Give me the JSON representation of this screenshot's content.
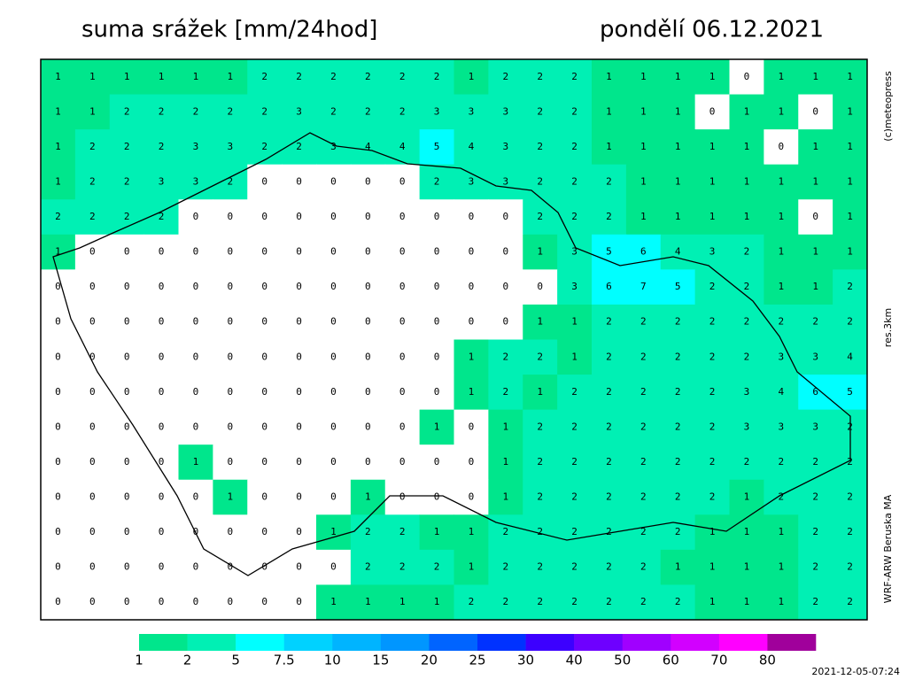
{
  "header": {
    "title": "suma srážek [mm/24hod]",
    "date": "pondělí 06.12.2021"
  },
  "side_labels": {
    "copyright": "(c)meteopress",
    "resolution": "res.3km",
    "model": "WRF-ARW Beruska MA"
  },
  "timestamp": "2021-12-05-07:24",
  "legend": {
    "levels": [
      1,
      2,
      5,
      7.5,
      10,
      15,
      20,
      25,
      30,
      40,
      50,
      60,
      70,
      80
    ],
    "colors": [
      "#00e68c",
      "#00f0b4",
      "#00ffff",
      "#00d2ff",
      "#00b4ff",
      "#0096ff",
      "#0064ff",
      "#0032ff",
      "#3c00ff",
      "#6e00ff",
      "#a000ff",
      "#d200ff",
      "#ff00ff",
      "#a0009b"
    ]
  },
  "map": {
    "grid": [
      [
        1,
        1,
        1,
        1,
        1,
        1,
        2,
        2,
        2,
        2,
        2,
        2,
        1,
        2,
        2,
        2,
        1,
        1,
        1,
        1,
        0,
        1,
        1,
        1
      ],
      [
        1,
        1,
        2,
        2,
        2,
        2,
        2,
        3,
        2,
        2,
        2,
        3,
        3,
        3,
        2,
        2,
        1,
        1,
        1,
        0,
        1,
        1,
        0,
        1
      ],
      [
        1,
        2,
        2,
        2,
        3,
        3,
        2,
        2,
        3,
        4,
        4,
        5,
        4,
        3,
        2,
        2,
        1,
        1,
        1,
        1,
        1,
        0,
        1,
        1
      ],
      [
        1,
        2,
        2,
        3,
        3,
        2,
        0,
        0,
        0,
        0,
        0,
        2,
        3,
        3,
        2,
        2,
        2,
        1,
        1,
        1,
        1,
        1,
        1,
        1
      ],
      [
        2,
        2,
        2,
        2,
        0,
        0,
        0,
        0,
        0,
        0,
        0,
        0,
        0,
        0,
        2,
        2,
        2,
        1,
        1,
        1,
        1,
        1,
        0,
        1
      ],
      [
        1,
        0,
        0,
        0,
        0,
        0,
        0,
        0,
        0,
        0,
        0,
        0,
        0,
        0,
        1,
        3,
        5,
        6,
        4,
        3,
        2,
        1,
        1,
        1
      ],
      [
        0,
        0,
        0,
        0,
        0,
        0,
        0,
        0,
        0,
        0,
        0,
        0,
        0,
        0,
        0,
        3,
        6,
        7,
        5,
        2,
        2,
        1,
        1,
        2
      ],
      [
        0,
        0,
        0,
        0,
        0,
        0,
        0,
        0,
        0,
        0,
        0,
        0,
        0,
        0,
        1,
        1,
        2,
        2,
        2,
        2,
        2,
        2,
        2,
        2
      ],
      [
        0,
        0,
        0,
        0,
        0,
        0,
        0,
        0,
        0,
        0,
        0,
        0,
        1,
        2,
        2,
        1,
        2,
        2,
        2,
        2,
        2,
        3,
        3,
        4
      ],
      [
        0,
        0,
        0,
        0,
        0,
        0,
        0,
        0,
        0,
        0,
        0,
        0,
        1,
        2,
        1,
        2,
        2,
        2,
        2,
        2,
        3,
        4,
        6,
        5
      ],
      [
        0,
        0,
        0,
        0,
        0,
        0,
        0,
        0,
        0,
        0,
        0,
        1,
        0,
        1,
        2,
        2,
        2,
        2,
        2,
        2,
        3,
        3,
        3,
        2
      ],
      [
        0,
        0,
        0,
        0,
        1,
        0,
        0,
        0,
        0,
        0,
        0,
        0,
        0,
        1,
        2,
        2,
        2,
        2,
        2,
        2,
        2,
        2,
        2,
        2
      ],
      [
        0,
        0,
        0,
        0,
        0,
        1,
        0,
        0,
        0,
        1,
        0,
        0,
        0,
        1,
        2,
        2,
        2,
        2,
        2,
        2,
        1,
        2,
        2,
        2
      ],
      [
        0,
        0,
        0,
        0,
        0,
        0,
        0,
        0,
        1,
        2,
        2,
        1,
        1,
        2,
        2,
        2,
        2,
        2,
        2,
        1,
        1,
        1,
        2,
        2
      ],
      [
        0,
        0,
        0,
        0,
        0,
        0,
        0,
        0,
        0,
        2,
        2,
        2,
        1,
        2,
        2,
        2,
        2,
        2,
        1,
        1,
        1,
        1,
        2,
        2
      ],
      [
        0,
        0,
        0,
        0,
        0,
        0,
        0,
        0,
        1,
        1,
        1,
        1,
        2,
        2,
        2,
        2,
        2,
        2,
        2,
        1,
        1,
        1,
        2,
        2
      ]
    ]
  }
}
